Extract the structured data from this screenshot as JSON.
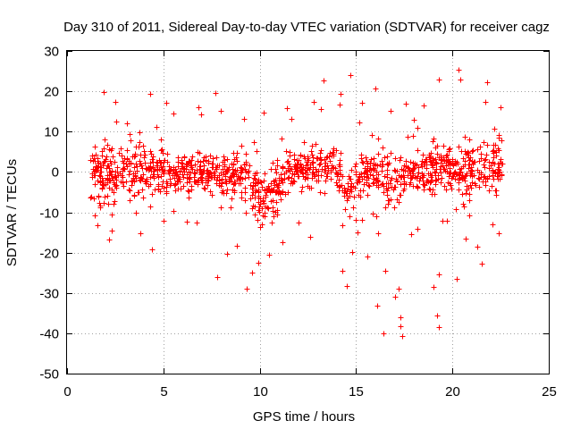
{
  "chart_data": {
    "type": "scatter",
    "title": "Day 310 of 2011, Sidereal Day-to-day VTEC variation (SDTVAR) for receiver cagz",
    "xlabel": "GPS time / hours",
    "ylabel": "SDTVAR / TECUs",
    "xlim": [
      0,
      25
    ],
    "ylim": [
      -50,
      30
    ],
    "xticks": [
      "0",
      "5",
      "10",
      "15",
      "20",
      "25"
    ],
    "yticks": [
      "30",
      "20",
      "10",
      "0",
      "-10",
      "-20",
      "-30",
      "-40",
      "-50"
    ],
    "grid": true,
    "marker": "+",
    "color": "#ff0000",
    "x_extent": [
      1.2,
      22.6
    ],
    "points": [
      [
        1.9,
        19.8
      ],
      [
        4.3,
        19.3
      ],
      [
        7.7,
        19.6
      ],
      [
        13.3,
        22.7
      ],
      [
        14.7,
        24.0
      ],
      [
        14.2,
        19.4
      ],
      [
        16.0,
        20.6
      ],
      [
        19.3,
        22.9
      ],
      [
        20.3,
        25.4
      ],
      [
        21.8,
        22.3
      ],
      [
        20.4,
        23.0
      ],
      [
        21.7,
        17.4
      ],
      [
        2.5,
        17.3
      ],
      [
        3.1,
        12.1
      ],
      [
        5.5,
        14.4
      ],
      [
        6.8,
        16.0
      ],
      [
        8.0,
        15.2
      ],
      [
        10.2,
        14.7
      ],
      [
        11.4,
        15.8
      ],
      [
        12.8,
        17.3
      ],
      [
        15.3,
        17.1
      ],
      [
        17.6,
        17.0
      ],
      [
        18.5,
        16.5
      ],
      [
        22.5,
        16.1
      ],
      [
        1.6,
        -13.3
      ],
      [
        2.3,
        -14.6
      ],
      [
        3.8,
        -15.2
      ],
      [
        4.4,
        -19.3
      ],
      [
        7.8,
        -26.0
      ],
      [
        8.3,
        -20.4
      ],
      [
        9.3,
        -29.0
      ],
      [
        9.6,
        -25.0
      ],
      [
        10.5,
        -20.5
      ],
      [
        11.2,
        -17.5
      ],
      [
        12.6,
        -16.0
      ],
      [
        14.3,
        -24.6
      ],
      [
        14.5,
        -28.3
      ],
      [
        14.8,
        -19.8
      ],
      [
        15.6,
        -21.0
      ],
      [
        16.1,
        -33.2
      ],
      [
        16.4,
        -40.0
      ],
      [
        16.5,
        -24.5
      ],
      [
        17.0,
        -31.0
      ],
      [
        17.3,
        -38.2
      ],
      [
        17.4,
        -40.6
      ],
      [
        17.2,
        -29.0
      ],
      [
        17.3,
        -36.0
      ],
      [
        19.2,
        -35.7
      ],
      [
        19.3,
        -38.5
      ],
      [
        19.3,
        -25.3
      ],
      [
        19.0,
        -28.5
      ],
      [
        20.2,
        -26.5
      ],
      [
        21.5,
        -22.7
      ],
      [
        21.3,
        -18.6
      ],
      [
        22.1,
        -13.0
      ],
      [
        22.4,
        -15.2
      ],
      [
        6.2,
        -12.3
      ],
      [
        12.0,
        -12.5
      ],
      [
        18.2,
        -14.0
      ],
      [
        5.0,
        -12.0
      ]
    ]
  }
}
